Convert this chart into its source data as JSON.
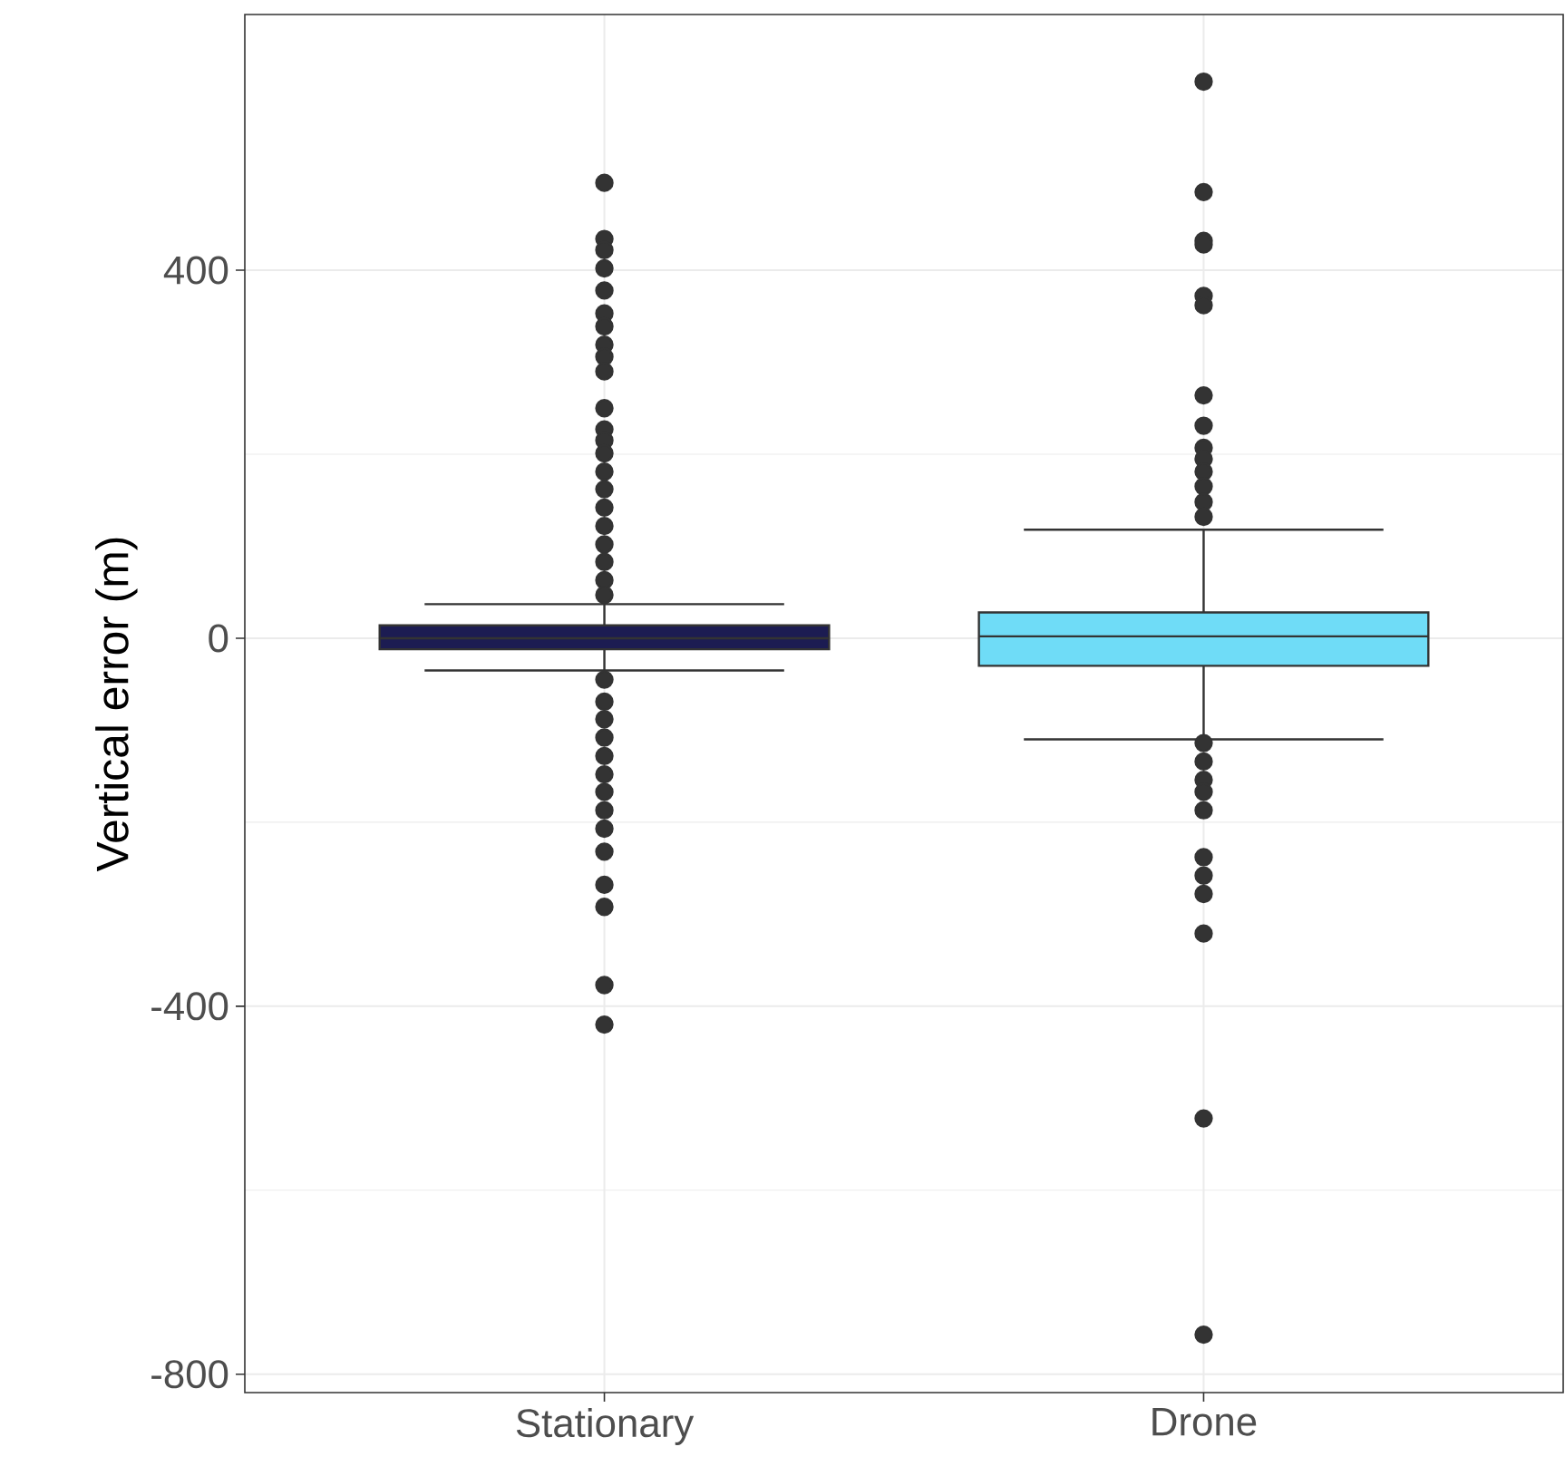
{
  "chart_data": {
    "type": "box",
    "ylabel": "Vertical error (m)",
    "categories": [
      "Stationary",
      "Drone"
    ],
    "colors": [
      "#1c1c52",
      "#6fdcf7"
    ],
    "boxes": [
      {
        "low": -35,
        "q1": -12,
        "median": 0,
        "q3": 14,
        "high": 37,
        "outliers": [
          495,
          434,
          422,
          402,
          378,
          353,
          339,
          319,
          306,
          290,
          250,
          227,
          215,
          201,
          181,
          162,
          142,
          122,
          102,
          83,
          63,
          47,
          -45,
          -69,
          -88,
          -108,
          -128,
          -148,
          -167,
          -187,
          -207,
          -232,
          -268,
          -292,
          -377,
          -420
        ]
      },
      {
        "low": -110,
        "q1": -30,
        "median": 2,
        "q3": 28,
        "high": 118,
        "outliers": [
          605,
          485,
          432,
          428,
          372,
          362,
          264,
          231,
          207,
          195,
          181,
          165,
          148,
          132,
          -114,
          -134,
          -154,
          -167,
          -187,
          -238,
          -258,
          -278,
          -321,
          -522,
          -757
        ]
      }
    ],
    "ylim": [
      -820,
      678
    ],
    "yticks": [
      -800,
      -400,
      0,
      400
    ],
    "grid": true
  }
}
